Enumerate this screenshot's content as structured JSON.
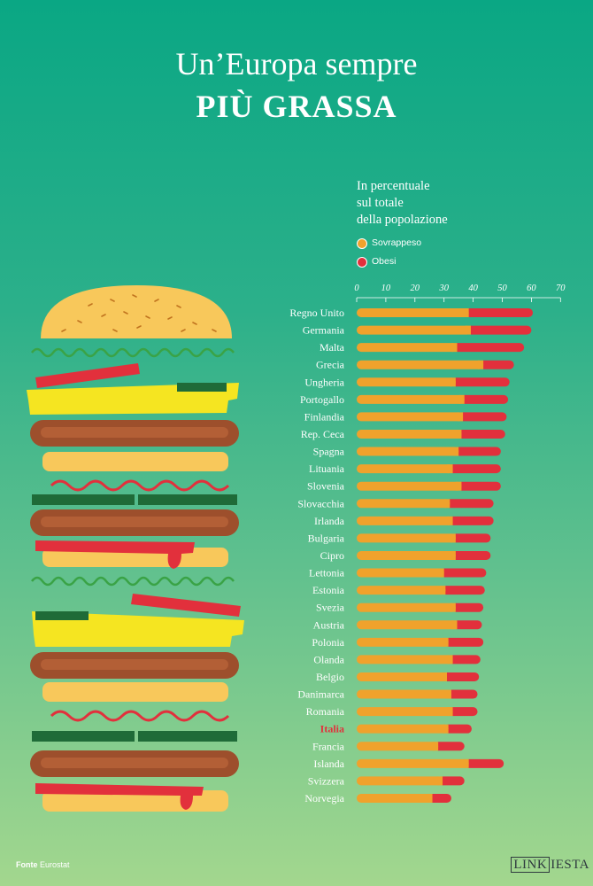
{
  "title": {
    "line1": "Un’Europa sempre",
    "line2": "PIÙ GRASSA"
  },
  "subtitle": [
    "In percentuale",
    "sul totale",
    "della popolazione"
  ],
  "legend": [
    {
      "label": "Sovrappeso",
      "color": "#f0a22c"
    },
    {
      "label": "Obesi",
      "color": "#e2303c"
    }
  ],
  "footer": {
    "source_label": "Fonte",
    "source_value": "Eurostat",
    "logo_box": "LINK",
    "logo_rest": "IESTA"
  },
  "colors": {
    "overweight": "#f0a22c",
    "obese": "#e2303c",
    "highlight_label": "#e2303c",
    "label": "#ffffff"
  },
  "chart_data": {
    "type": "bar",
    "orientation": "horizontal",
    "stacked": true,
    "xlim": [
      0,
      70
    ],
    "xticks": [
      "0",
      "10",
      "20",
      "30",
      "40",
      "50",
      "60",
      "70"
    ],
    "categories": [
      "Regno Unito",
      "Germania",
      "Malta",
      "Grecia",
      "Ungheria",
      "Portogallo",
      "Finlandia",
      "Rep. Ceca",
      "Spagna",
      "Lituania",
      "Slovenia",
      "Slovacchia",
      "Irlanda",
      "Bulgaria",
      "Cipro",
      "Lettonia",
      "Estonia",
      "Svezia",
      "Austria",
      "Polonia",
      "Olanda",
      "Belgio",
      "Danimarca",
      "Romania",
      "Italia",
      "Francia",
      "Islanda",
      "Svizzera",
      "Norvegia"
    ],
    "highlight": "Italia",
    "series": [
      {
        "name": "Sovrappeso",
        "values": [
          38.5,
          39.2,
          34.5,
          43.5,
          34,
          37,
          36.5,
          36,
          35,
          33,
          36,
          32,
          33,
          34,
          34,
          30,
          30.5,
          34,
          34.5,
          31.5,
          33,
          31,
          32.5,
          33,
          31.5,
          28,
          38.5,
          29.5,
          26
        ]
      },
      {
        "name": "Obesi",
        "values": [
          22,
          20.8,
          23,
          10.5,
          18.5,
          15,
          15,
          15,
          14.5,
          16.5,
          13.5,
          15,
          14,
          12,
          12,
          14.5,
          13.5,
          9.5,
          8.5,
          12,
          9.5,
          11,
          9,
          8.5,
          8,
          9,
          12,
          7.5,
          6.5
        ]
      }
    ]
  }
}
